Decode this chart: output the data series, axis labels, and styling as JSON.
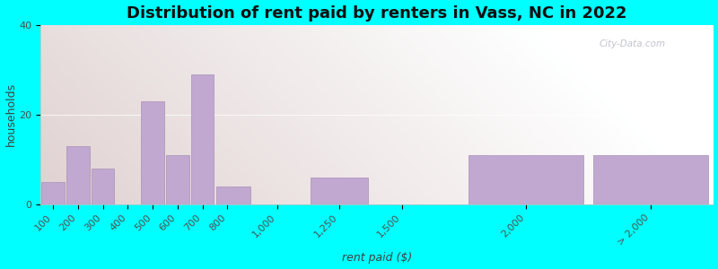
{
  "title": "Distribution of rent paid by renters in Vass, NC in 2022",
  "xlabel": "rent paid ($)",
  "ylabel": "households",
  "tick_labels": [
    "100",
    "200",
    "300",
    "400",
    "500",
    "600",
    "700",
    "800",
    "1,000",
    "1,250",
    "1,500",
    "2,000",
    "> 2,000"
  ],
  "tick_positions": [
    100,
    200,
    300,
    400,
    500,
    600,
    700,
    800,
    1000,
    1250,
    1500,
    2000,
    2500
  ],
  "bar_lefts": [
    50,
    150,
    250,
    350,
    450,
    550,
    650,
    750,
    875,
    1125,
    1375,
    1750,
    2250
  ],
  "bar_widths": [
    100,
    100,
    100,
    100,
    100,
    100,
    100,
    150,
    250,
    250,
    375,
    500,
    500
  ],
  "bar_values": [
    5,
    13,
    8,
    0,
    23,
    11,
    29,
    4,
    0,
    6,
    0,
    11,
    11
  ],
  "bar_color": "#c0a8d0",
  "bar_edge_color": "#a890b8",
  "ylim": [
    0,
    40
  ],
  "yticks": [
    0,
    20,
    40
  ],
  "outer_bg": "#00ffff",
  "title_fontsize": 13,
  "axis_label_fontsize": 9,
  "tick_fontsize": 8,
  "watermark": "City-Data.com"
}
